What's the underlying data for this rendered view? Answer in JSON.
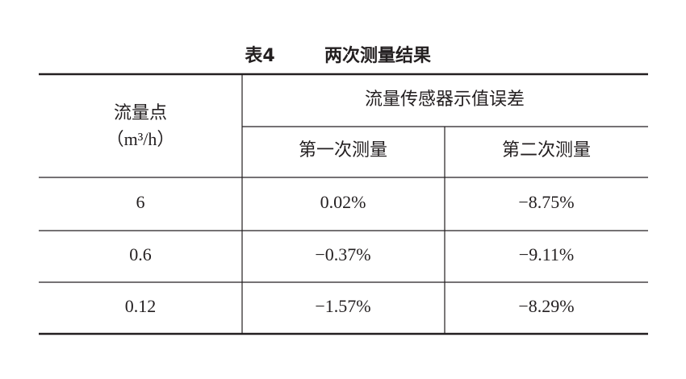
{
  "title": {
    "label": "表4",
    "text": "两次测量结果"
  },
  "table": {
    "header": {
      "row_header": [
        "流量点",
        "（m³/h）"
      ],
      "group": "流量传感器示值误差",
      "columns": [
        "第一次测量",
        "第二次测量"
      ]
    },
    "rows": [
      [
        "6",
        "0.02%",
        "−8.75%"
      ],
      [
        "0.6",
        "−0.37%",
        "−9.11%"
      ],
      [
        "0.12",
        "−1.57%",
        "−8.29%"
      ]
    ]
  }
}
